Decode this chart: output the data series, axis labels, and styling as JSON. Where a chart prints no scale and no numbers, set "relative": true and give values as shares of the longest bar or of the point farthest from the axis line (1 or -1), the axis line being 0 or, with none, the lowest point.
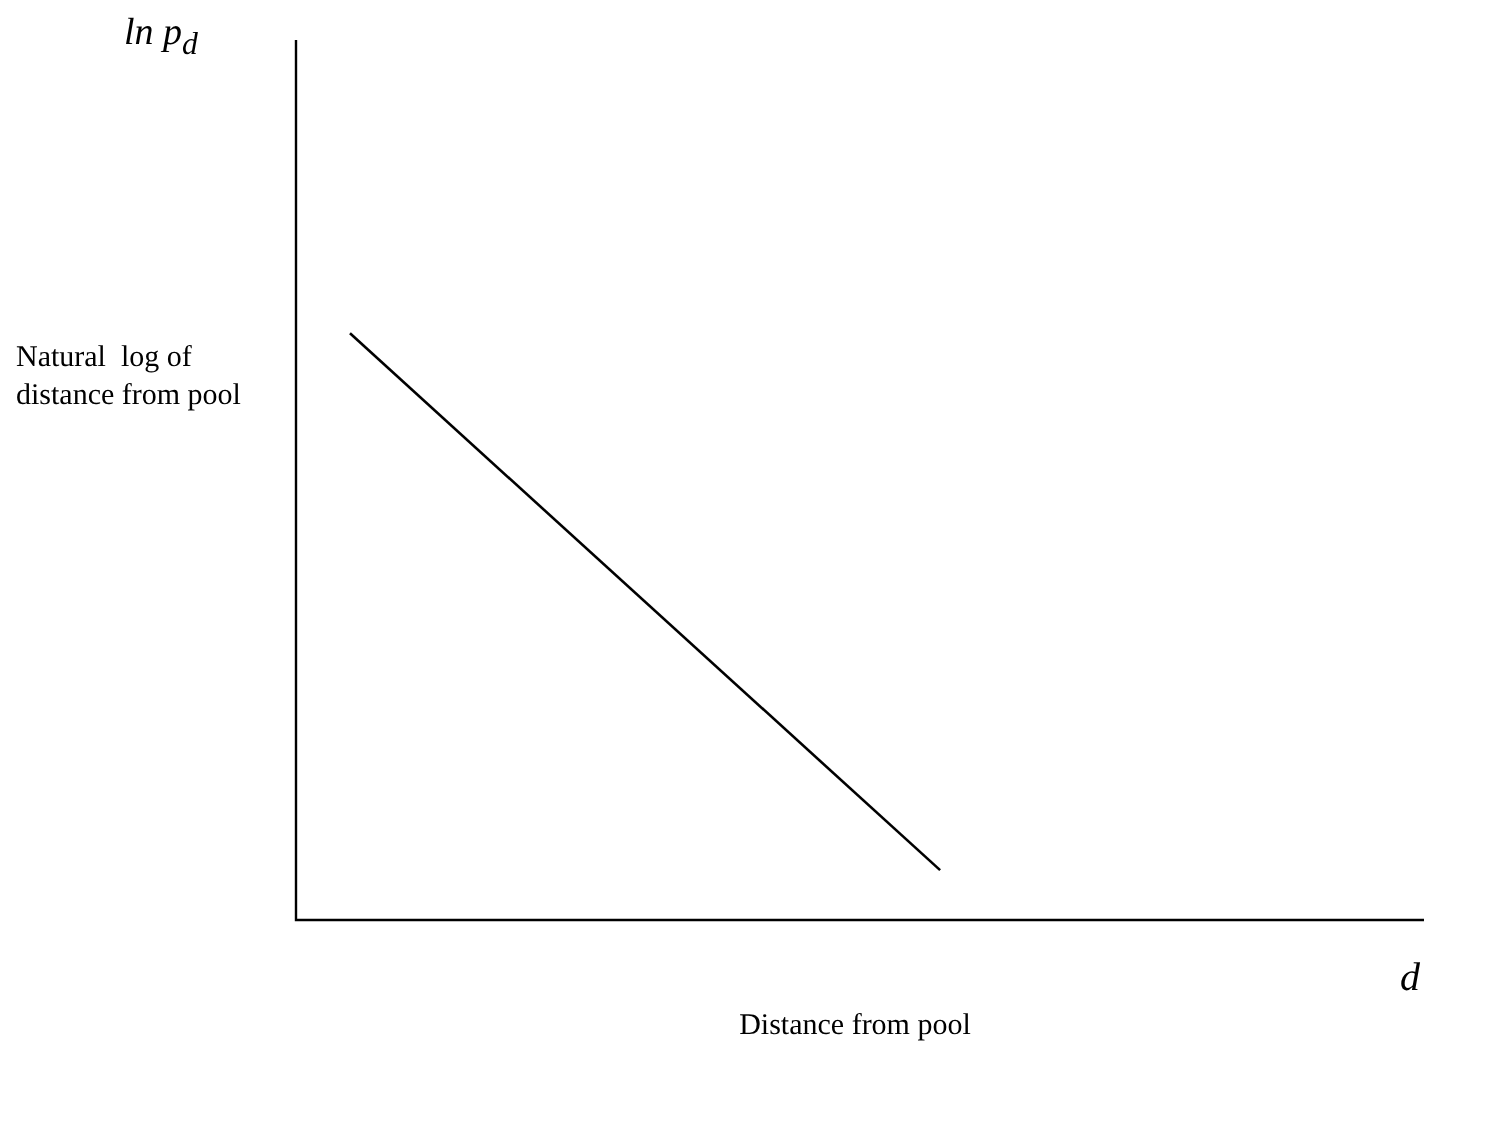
{
  "chart_data": {
    "type": "line",
    "relative": true,
    "categories": [
      null,
      null
    ],
    "values": [
      1,
      0.085
    ],
    "color": "#000000",
    "xlabel": "Distance from pool",
    "ylabel": "Natural  log of distance from pool",
    "annotations": [
      "ln  p$_{d}$",
      "d"
    ],
    "legend": false,
    "marker": "none"
  }
}
